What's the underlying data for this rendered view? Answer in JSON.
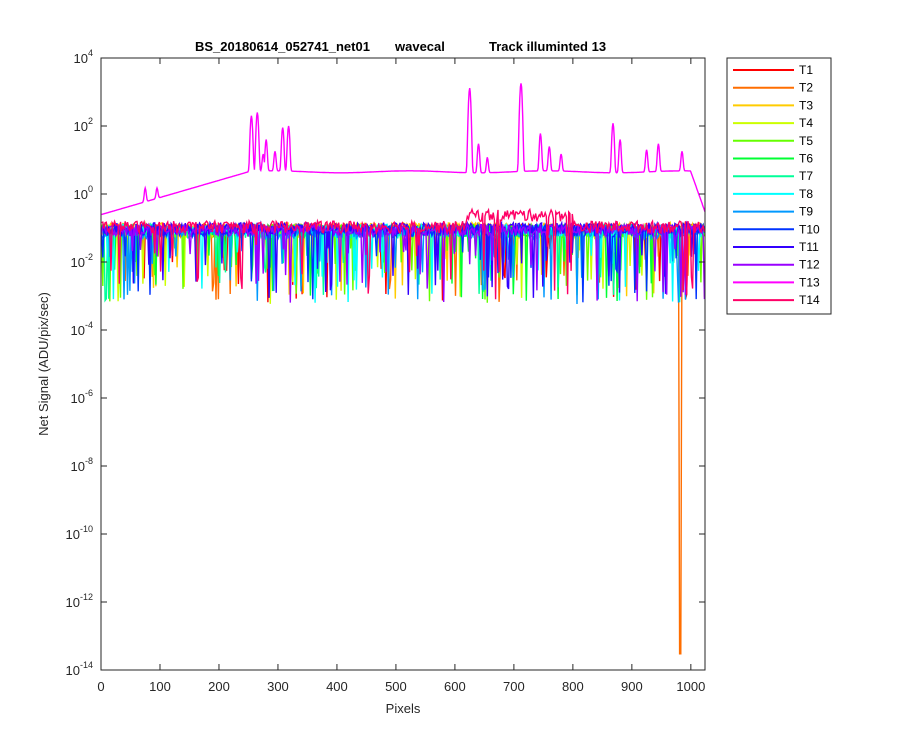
{
  "chart_data": {
    "type": "line",
    "title_parts": [
      "BS_20180614_052741_net01",
      "wavecal",
      "Track illuminted 13"
    ],
    "xlabel": "Pixels",
    "ylabel": "Net Signal (ADU/pix/sec)",
    "xlim": [
      0,
      1024
    ],
    "ylim": [
      1e-14,
      10000.0
    ],
    "yscale": "log",
    "x_ticks": [
      0,
      100,
      200,
      300,
      400,
      500,
      600,
      700,
      800,
      900,
      1000
    ],
    "y_tick_exponents": [
      -14,
      -12,
      -10,
      -8,
      -6,
      -4,
      -2,
      0,
      2,
      4
    ],
    "y_tick_base": "10",
    "grid": false,
    "legend_position": "outside-right",
    "series": [
      {
        "name": "T1",
        "color": "#ff0000",
        "baseline": 0.08
      },
      {
        "name": "T2",
        "color": "#ff6e00",
        "baseline": 0.08,
        "dip": {
          "x": 982,
          "y": 3e-14
        }
      },
      {
        "name": "T3",
        "color": "#ffcc00",
        "baseline": 0.09
      },
      {
        "name": "T4",
        "color": "#ccff00",
        "baseline": 0.07
      },
      {
        "name": "T5",
        "color": "#66ff00",
        "baseline": 0.08
      },
      {
        "name": "T6",
        "color": "#00ff33",
        "baseline": 0.08
      },
      {
        "name": "T7",
        "color": "#00ff99",
        "baseline": 0.07
      },
      {
        "name": "T8",
        "color": "#00ffff",
        "baseline": 0.08
      },
      {
        "name": "T9",
        "color": "#0099ff",
        "baseline": 0.07
      },
      {
        "name": "T10",
        "color": "#0033ff",
        "baseline": 0.08
      },
      {
        "name": "T11",
        "color": "#3300ff",
        "baseline": 0.09
      },
      {
        "name": "T12",
        "color": "#9900ff",
        "baseline": 0.08
      },
      {
        "name": "T13",
        "color": "#ff00ff",
        "baseline": 4.5,
        "peaks": [
          {
            "x": 255,
            "y": 200
          },
          {
            "x": 265,
            "y": 250
          },
          {
            "x": 275,
            "y": 15
          },
          {
            "x": 280,
            "y": 40
          },
          {
            "x": 295,
            "y": 18
          },
          {
            "x": 308,
            "y": 90
          },
          {
            "x": 318,
            "y": 100
          },
          {
            "x": 625,
            "y": 1300
          },
          {
            "x": 640,
            "y": 30
          },
          {
            "x": 655,
            "y": 12
          },
          {
            "x": 712,
            "y": 1800
          },
          {
            "x": 745,
            "y": 60
          },
          {
            "x": 760,
            "y": 25
          },
          {
            "x": 780,
            "y": 15
          },
          {
            "x": 868,
            "y": 120
          },
          {
            "x": 880,
            "y": 40
          },
          {
            "x": 925,
            "y": 20
          },
          {
            "x": 945,
            "y": 30
          },
          {
            "x": 985,
            "y": 18
          },
          {
            "x": 75,
            "y": 1.5
          },
          {
            "x": 95,
            "y": 1.5
          },
          {
            "x": 170,
            "y": 1.2
          }
        ]
      },
      {
        "name": "T14",
        "color": "#ff0066",
        "baseline": 0.1
      }
    ]
  }
}
